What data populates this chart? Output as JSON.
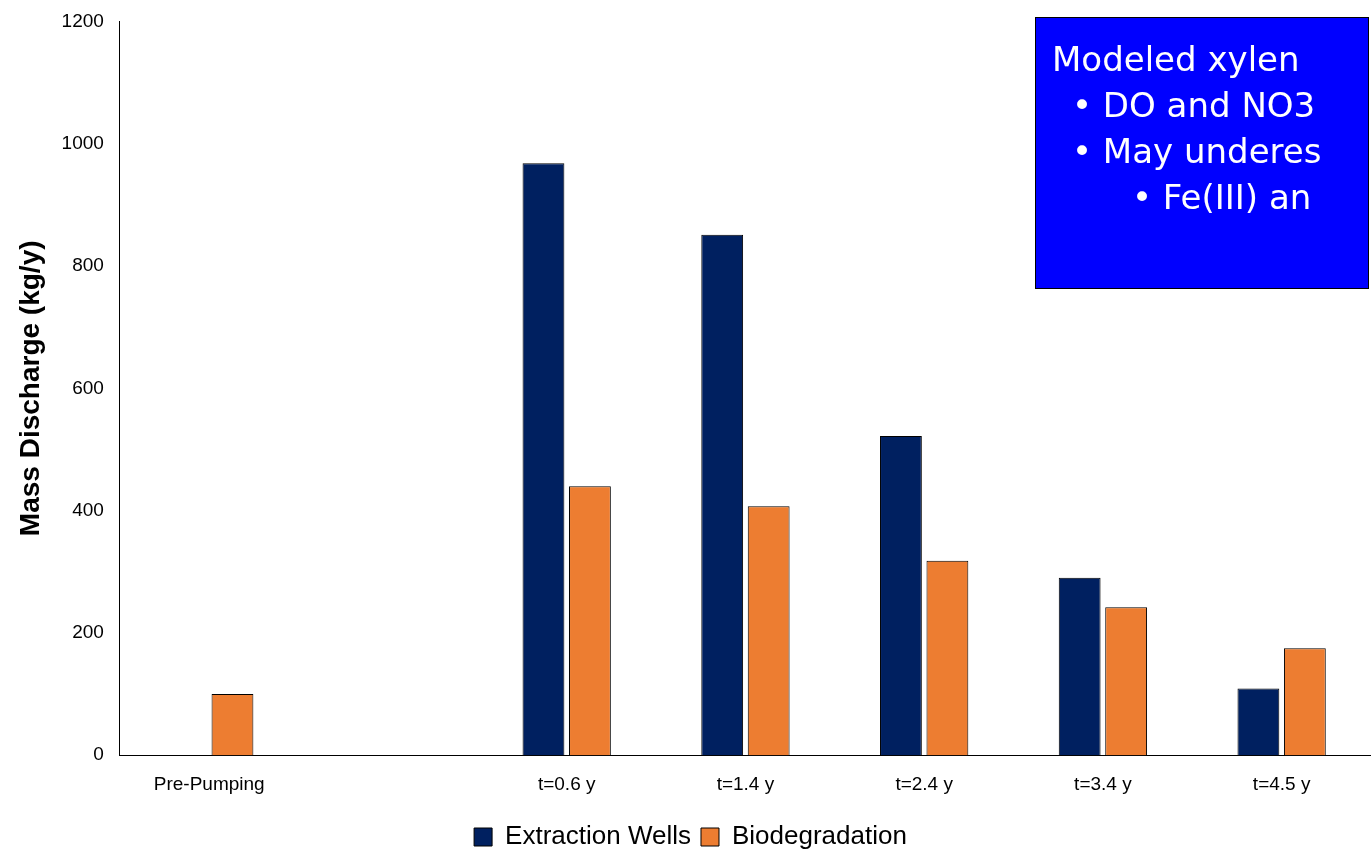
{
  "chart_data": {
    "type": "bar",
    "ylabel": "Mass Discharge (kg/y)",
    "categories": [
      "Pre-Pumping",
      null,
      "t=0.6 y",
      "t=1.4 y",
      "t=2.4 y",
      "t=3.4 y",
      "t=4.5 y"
    ],
    "series": [
      {
        "name": "Extraction Wells",
        "color": "#002060",
        "values": [
          null,
          null,
          968,
          851,
          522,
          290,
          109
        ]
      },
      {
        "name": "Biodegradation",
        "color": "#ed7d31",
        "values": [
          100,
          null,
          440,
          407,
          318,
          242,
          175
        ]
      }
    ],
    "ylim": [
      0,
      1200
    ],
    "yticks": [
      0,
      200,
      400,
      600,
      800,
      1000,
      1200
    ],
    "grid": false,
    "legend": "bottom",
    "annotations": [
      "Modeled xylen",
      "•  DO and NO3",
      "•  May underes",
      "•  Fe(III) an"
    ]
  }
}
